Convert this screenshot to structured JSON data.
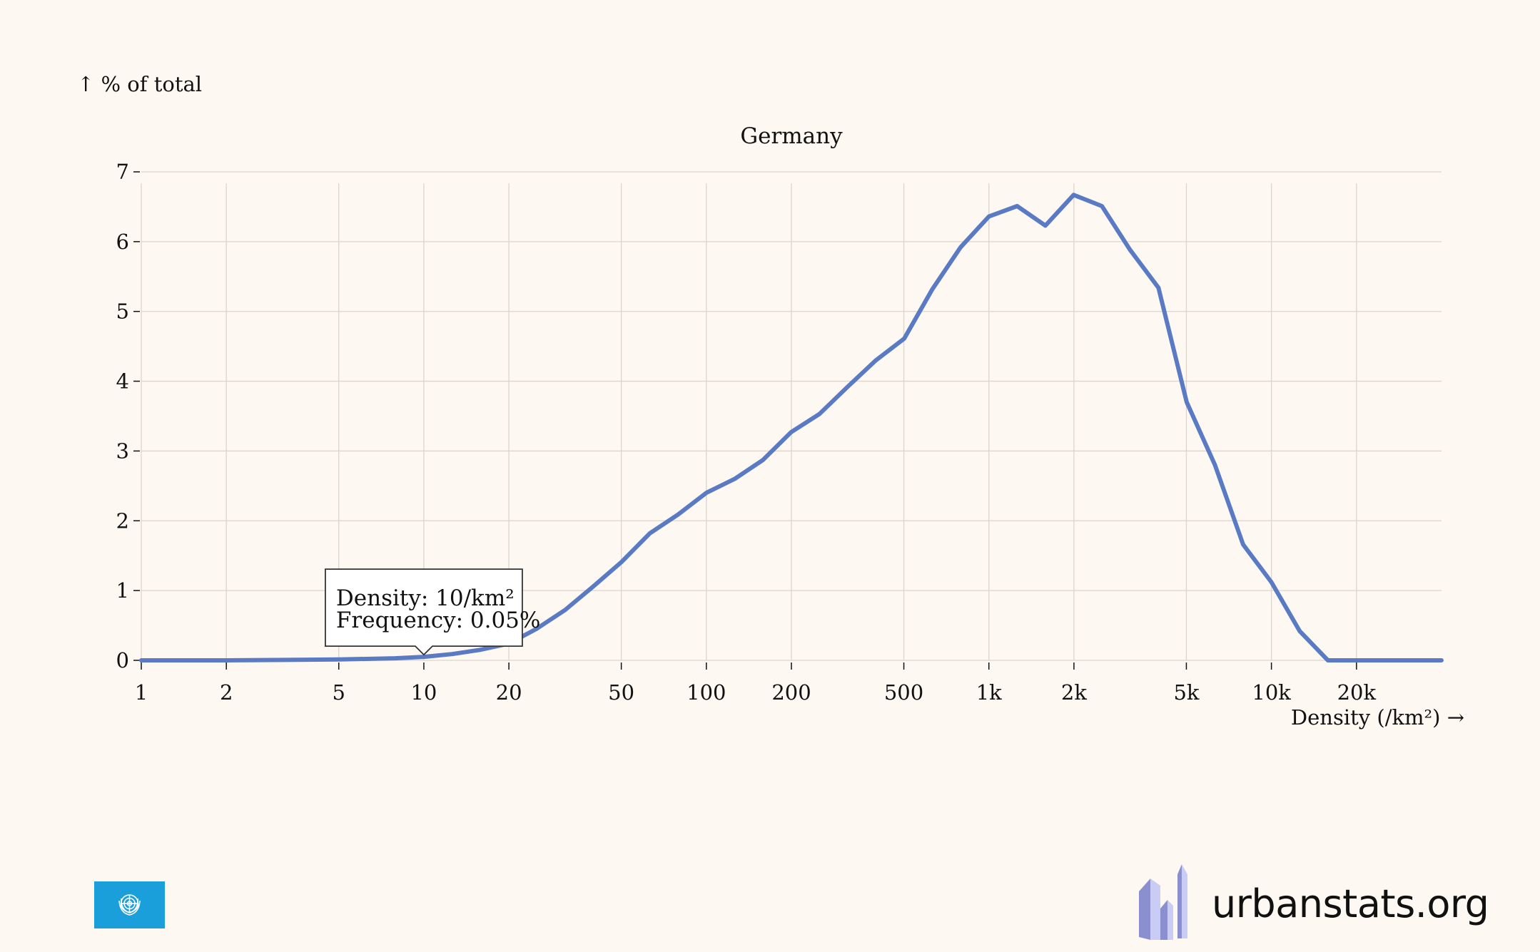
{
  "page": {
    "brand_text": "urbanstats.org",
    "flag_icon": "un-flag-icon",
    "logo_icon": "urbanstats-buildings-icon"
  },
  "chart_data": {
    "type": "line",
    "title": "Germany",
    "xlabel": "Density (/km²) →",
    "ylabel": "↑ % of total",
    "x_scale": "log",
    "xlim": [
      1,
      40000
    ],
    "ylim": [
      0,
      7
    ],
    "x_ticks": [
      {
        "value": 1,
        "label": "1"
      },
      {
        "value": 2,
        "label": "2"
      },
      {
        "value": 5,
        "label": "5"
      },
      {
        "value": 10,
        "label": "10"
      },
      {
        "value": 20,
        "label": "20"
      },
      {
        "value": 50,
        "label": "50"
      },
      {
        "value": 100,
        "label": "100"
      },
      {
        "value": 200,
        "label": "200"
      },
      {
        "value": 500,
        "label": "500"
      },
      {
        "value": 1000,
        "label": "1k"
      },
      {
        "value": 2000,
        "label": "2k"
      },
      {
        "value": 5000,
        "label": "5k"
      },
      {
        "value": 10000,
        "label": "10k"
      },
      {
        "value": 20000,
        "label": "20k"
      }
    ],
    "y_ticks": [
      {
        "value": 0,
        "label": "0"
      },
      {
        "value": 1,
        "label": "1"
      },
      {
        "value": 2,
        "label": "2"
      },
      {
        "value": 3,
        "label": "3"
      },
      {
        "value": 4,
        "label": "4"
      },
      {
        "value": 5,
        "label": "5"
      },
      {
        "value": 6,
        "label": "6"
      },
      {
        "value": 7,
        "label": "7"
      }
    ],
    "grid": true,
    "series": [
      {
        "color": "#5a7bc4",
        "points": [
          [
            1,
            0
          ],
          [
            2,
            0
          ],
          [
            3,
            0.005
          ],
          [
            5,
            0.012
          ],
          [
            7.9,
            0.03
          ],
          [
            10,
            0.05
          ],
          [
            12.6,
            0.09
          ],
          [
            15.8,
            0.15
          ],
          [
            20,
            0.24
          ],
          [
            25,
            0.45
          ],
          [
            31.6,
            0.72
          ],
          [
            39.8,
            1.06
          ],
          [
            50.1,
            1.41
          ],
          [
            63.1,
            1.82
          ],
          [
            79.4,
            2.09
          ],
          [
            100,
            2.4
          ],
          [
            125.9,
            2.6
          ],
          [
            158.5,
            2.87
          ],
          [
            199.5,
            3.27
          ],
          [
            251.2,
            3.53
          ],
          [
            316.2,
            3.92
          ],
          [
            398.1,
            4.3
          ],
          [
            501.2,
            4.61
          ],
          [
            631,
            5.32
          ],
          [
            794.3,
            5.92
          ],
          [
            1000,
            6.36
          ],
          [
            1258.9,
            6.51
          ],
          [
            1584.9,
            6.23
          ],
          [
            1995.3,
            6.67
          ],
          [
            2511.9,
            6.51
          ],
          [
            3162.3,
            5.88
          ],
          [
            3981.1,
            5.34
          ],
          [
            5011.9,
            3.7
          ],
          [
            6309.6,
            2.8
          ],
          [
            7943.3,
            1.66
          ],
          [
            10000,
            1.12
          ],
          [
            12589,
            0.42
          ],
          [
            15849,
            0
          ],
          [
            20000,
            0
          ],
          [
            30000,
            0
          ],
          [
            40000,
            0
          ]
        ]
      }
    ],
    "tooltip": {
      "x": 10,
      "y": 0.05,
      "line1": "Density: 10/km²",
      "line2": "Frequency: 0.05%"
    }
  }
}
